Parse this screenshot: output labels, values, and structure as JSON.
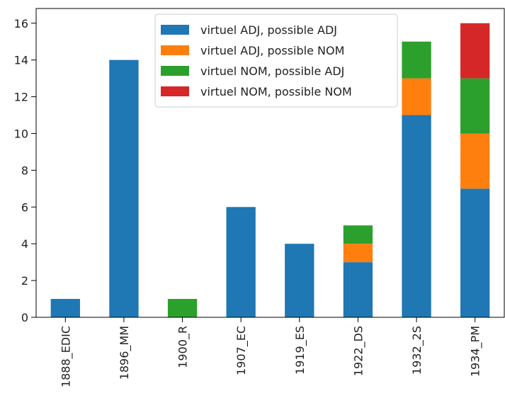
{
  "chart_data": {
    "type": "bar",
    "stacked": true,
    "categories": [
      "1888_EDIC",
      "1896_MM",
      "1900_R",
      "1907_EC",
      "1919_ES",
      "1922_DS",
      "1932_2S",
      "1934_PM"
    ],
    "series": [
      {
        "name": "virtuel ADJ, possible ADJ",
        "color": "#1f77b4",
        "values": [
          1,
          14,
          0,
          6,
          4,
          3,
          11,
          7
        ]
      },
      {
        "name": "virtuel ADJ, possible NOM",
        "color": "#ff7f0e",
        "values": [
          0,
          0,
          0,
          0,
          0,
          1,
          2,
          3
        ]
      },
      {
        "name": "virtuel NOM, possible ADJ",
        "color": "#2ca02c",
        "values": [
          0,
          0,
          1,
          0,
          0,
          1,
          2,
          3
        ]
      },
      {
        "name": "virtuel NOM, possible NOM",
        "color": "#d62728",
        "values": [
          0,
          0,
          0,
          0,
          0,
          0,
          0,
          3
        ]
      }
    ],
    "title": "",
    "xlabel": "",
    "ylabel": "",
    "ylim": [
      0,
      16.8
    ],
    "yticks": [
      0,
      2,
      4,
      6,
      8,
      10,
      12,
      14,
      16
    ],
    "grid": false,
    "legend_position": "top-center"
  }
}
